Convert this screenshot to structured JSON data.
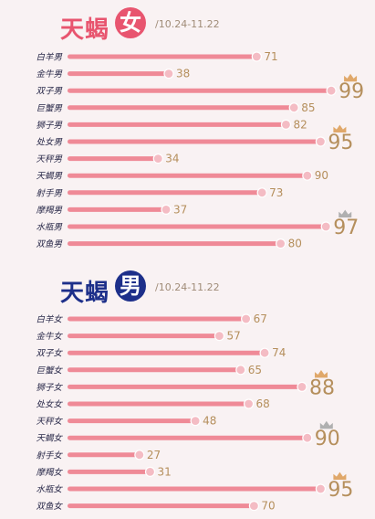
{
  "charts": [
    {
      "title_char_1": "天",
      "title_char_2": "蝎",
      "title_circle": "女",
      "date_range": "/10.24-11.22",
      "title_color": "#e8556f",
      "circle_color": "#e8556f"
    },
    {
      "title_char_1": "天",
      "title_char_2": "蝎",
      "title_circle": "男",
      "date_range": "/10.24-11.22",
      "title_color": "#1d2f8a",
      "circle_color": "#1d2f8a"
    }
  ],
  "colors": {
    "bar": "#ef8a97",
    "dot": "#f4bcc4",
    "value_text": "#b58f5c",
    "crown_gold": "#e0a86a",
    "crown_silver": "#b0b0b0"
  },
  "chart_data": [
    {
      "type": "bar",
      "categories": [
        "白羊男",
        "金牛男",
        "双子男",
        "巨蟹男",
        "狮子男",
        "处女男",
        "天秤男",
        "天蝎男",
        "射手男",
        "摩羯男",
        "水瓶男",
        "双鱼男"
      ],
      "values": [
        71,
        38,
        99,
        85,
        82,
        95,
        34,
        90,
        73,
        37,
        97,
        80
      ],
      "highlighted": [
        {
          "category": "双子男",
          "crown": "gold"
        },
        {
          "category": "处女男",
          "crown": "gold"
        },
        {
          "category": "水瓶男",
          "crown": "silver"
        }
      ],
      "xlim": [
        0,
        100
      ]
    },
    {
      "type": "bar",
      "categories": [
        "白羊女",
        "金牛女",
        "双子女",
        "巨蟹女",
        "狮子女",
        "处女女",
        "天秤女",
        "天蝎女",
        "射手女",
        "摩羯女",
        "水瓶女",
        "双鱼女"
      ],
      "values": [
        67,
        57,
        74,
        65,
        88,
        68,
        48,
        90,
        27,
        31,
        95,
        70
      ],
      "highlighted": [
        {
          "category": "狮子女",
          "crown": "gold"
        },
        {
          "category": "天蝎女",
          "crown": "silver"
        },
        {
          "category": "水瓶女",
          "crown": "gold"
        }
      ],
      "xlim": [
        0,
        100
      ]
    }
  ]
}
